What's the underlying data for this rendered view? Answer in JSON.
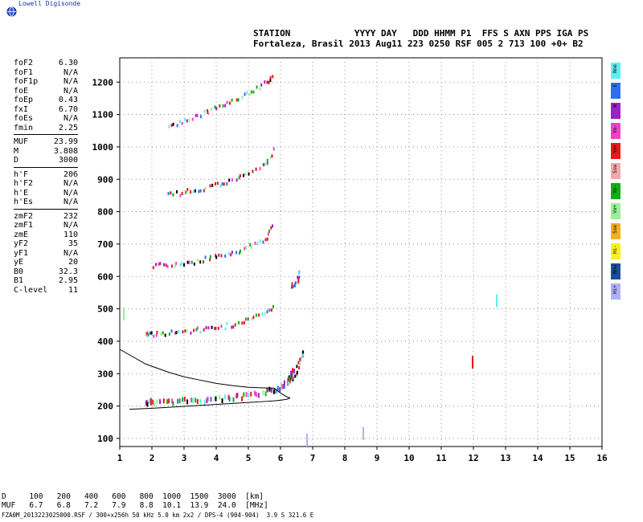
{
  "brand": "Lowell Digisonde",
  "header": {
    "line1": "STATION            YYYY DAY   DDD HHMM P1  FFS S AXN PPS IGA PS",
    "line2": "Fortaleza, Brasil 2013 Aug11 223 0250 RSF 005 2 713 100 +0+ B2"
  },
  "params": {
    "group1": [
      {
        "key": "foF2",
        "value": "6.30"
      },
      {
        "key": "foF1",
        "value": "N/A"
      },
      {
        "key": "foF1p",
        "value": "N/A"
      },
      {
        "key": "foE",
        "value": "N/A"
      },
      {
        "key": "foEp",
        "value": "0.43"
      },
      {
        "key": "fxI",
        "value": "6.70"
      },
      {
        "key": "foEs",
        "value": "N/A"
      },
      {
        "key": "fmin",
        "value": "2.25"
      }
    ],
    "group2": [
      {
        "key": "MUF",
        "value": "23.99"
      },
      {
        "key": "M",
        "value": "3.808"
      },
      {
        "key": "D",
        "value": "3000"
      }
    ],
    "group3": [
      {
        "key": "h'F",
        "value": "206"
      },
      {
        "key": "h'F2",
        "value": "N/A"
      },
      {
        "key": "h'E",
        "value": "N/A"
      },
      {
        "key": "h'Es",
        "value": "N/A"
      }
    ],
    "group4": [
      {
        "key": "zmF2",
        "value": "232"
      },
      {
        "key": "zmF1",
        "value": "N/A"
      },
      {
        "key": "zmE",
        "value": "110"
      },
      {
        "key": "yF2",
        "value": "35"
      },
      {
        "key": "yF1",
        "value": "N/A"
      },
      {
        "key": "yE",
        "value": "20"
      },
      {
        "key": "B0",
        "value": "32.3"
      },
      {
        "key": "B1",
        "value": "2.95"
      },
      {
        "key": "C-level",
        "value": "11"
      }
    ]
  },
  "legend": [
    {
      "label": "Nne",
      "color": "#5ef0ef"
    },
    {
      "label": "E",
      "color": "#2f6ef0"
    },
    {
      "label": "W",
      "color": "#a020c8"
    },
    {
      "label": "Vo-",
      "color": "#f040c8"
    },
    {
      "label": "Vo+",
      "color": "#e81818"
    },
    {
      "label": "Ssw",
      "color": "#f4a8a8"
    },
    {
      "label": "Vo-",
      "color": "#10b010"
    },
    {
      "label": "Vo+",
      "color": "#98f098"
    },
    {
      "label": "Sse",
      "color": "#f0b020"
    },
    {
      "label": "Hi-",
      "color": "#f8f020"
    },
    {
      "label": "Nnw",
      "color": "#1a4fa0"
    },
    {
      "label": "Hi+",
      "color": "#b0b0f8"
    }
  ],
  "footer": {
    "line1": "D     100   200   400   600   800  1000  1500  3000  [km]",
    "line2": "MUF   6.7   6.8   7.2   7.9   8.8  10.1  13.9  24.0  [MHz]",
    "line3": "FZA0M_2013223025000.RSF / 300+x256h 50 kHz 5.0 km 2x2 / DPS-4 (904-904)  3.9 S 321.6 E"
  },
  "chart_data": {
    "type": "scatter",
    "xlim": [
      1,
      16
    ],
    "ylim": [
      75,
      1275
    ],
    "xticks": [
      "1",
      "2",
      "3",
      "4",
      "5",
      "6",
      "7",
      "8",
      "9",
      "10",
      "11",
      "12",
      "13",
      "14",
      "15",
      "16"
    ],
    "yticks": [
      "100",
      "200",
      "300",
      "400",
      "500",
      "600",
      "700",
      "800",
      "900",
      "1000",
      "1100",
      "1200"
    ],
    "grid": true,
    "traces": [
      {
        "name_hidden": "first-hop",
        "x": [
          1.8,
          2.0,
          2.5,
          3.0,
          3.5,
          4.0,
          4.5,
          5.0,
          5.5,
          5.8,
          6.0,
          6.2,
          6.3,
          6.4
        ],
        "y": [
          210,
          212,
          213,
          215,
          218,
          220,
          225,
          230,
          240,
          250,
          260,
          275,
          290,
          310
        ]
      },
      {
        "name_hidden": "second-hop",
        "x": [
          1.8,
          2.0,
          2.5,
          3.0,
          3.5,
          4.0,
          4.5,
          5.0,
          5.5,
          5.8
        ],
        "y": [
          420,
          422,
          425,
          430,
          435,
          440,
          450,
          465,
          485,
          510
        ]
      },
      {
        "name_hidden": "third-hop",
        "x": [
          2.0,
          2.5,
          3.0,
          3.5,
          4.0,
          4.5,
          5.0,
          5.5,
          5.8
        ],
        "y": [
          630,
          635,
          640,
          648,
          660,
          672,
          690,
          715,
          760
        ]
      },
      {
        "name_hidden": "fourth-hop",
        "x": [
          2.5,
          3.0,
          3.5,
          4.0,
          4.5,
          5.0,
          5.5,
          5.8
        ],
        "y": [
          850,
          860,
          870,
          882,
          895,
          915,
          945,
          995
        ]
      },
      {
        "name_hidden": "fifth-hop",
        "x": [
          2.5,
          3.0,
          3.5,
          4.0,
          4.5,
          5.0,
          5.5,
          5.8
        ],
        "y": [
          1060,
          1080,
          1100,
          1120,
          1140,
          1165,
          1195,
          1225
        ]
      },
      {
        "name_hidden": "x-trace",
        "x": [
          6.2,
          6.4,
          6.5,
          6.6,
          6.7
        ],
        "y": [
          270,
          290,
          310,
          340,
          380
        ]
      },
      {
        "name_hidden": "spread",
        "x": [
          6.3,
          6.5,
          6.6
        ],
        "y": [
          560,
          590,
          615
        ]
      }
    ],
    "profile": {
      "upper_x": [
        1.0,
        1.8,
        2.5,
        3.0,
        3.5,
        4.0,
        4.5,
        5.0,
        5.5,
        5.8,
        6.0,
        6.2,
        6.3
      ],
      "upper_y": [
        375,
        330,
        305,
        290,
        280,
        270,
        263,
        258,
        256,
        255,
        240,
        228,
        225
      ],
      "lower_x": [
        1.3,
        2.0,
        2.5,
        3.0,
        3.5,
        4.0,
        4.5,
        5.0,
        5.5,
        5.8,
        6.0,
        6.2,
        6.3
      ],
      "lower_y": [
        190,
        193,
        196,
        199,
        202,
        205,
        208,
        211,
        214,
        216,
        218,
        221,
        225
      ]
    },
    "isolated": [
      {
        "x": 11.95,
        "y": 335
      },
      {
        "x": 12.7,
        "y": 525
      },
      {
        "x": 8.55,
        "y": 115
      },
      {
        "x": 6.8,
        "y": 95
      },
      {
        "x": 1.1,
        "y": 485
      }
    ]
  }
}
